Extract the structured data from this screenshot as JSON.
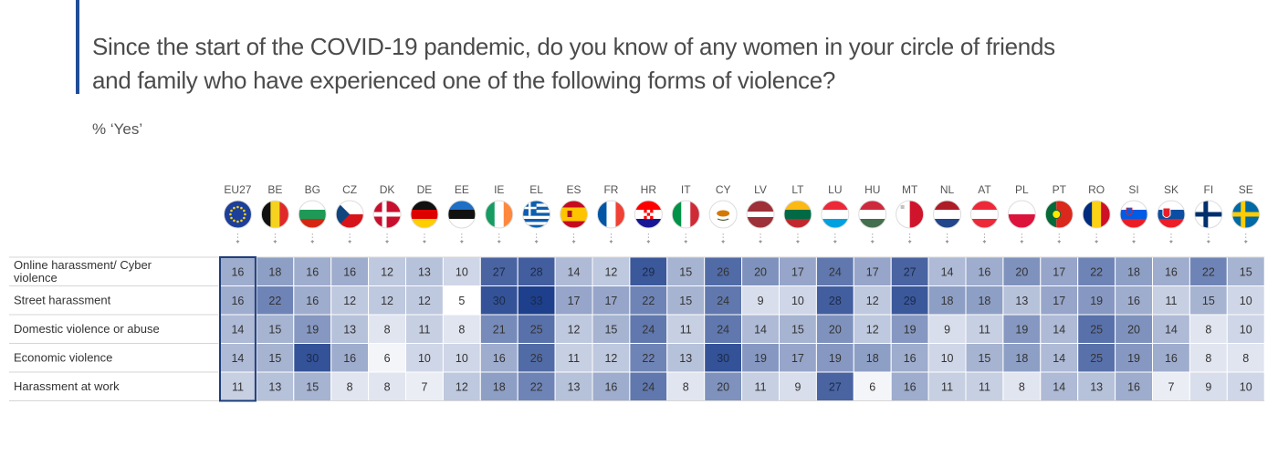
{
  "title": "Since the start of the COVID-19 pandemic, do you know of any women in your circle of friends and family who have experienced one of the following forms of violence?",
  "subtitle": "% ‘Yes’",
  "colors": {
    "accent": "#1f4e96",
    "scale_low": "#ffffff",
    "scale_high": "#1e3f8c",
    "highlight_border": "#1f3f7a"
  },
  "chart_data": {
    "type": "heatmap",
    "title": "",
    "columns": [
      "EU27",
      "BE",
      "BG",
      "CZ",
      "DK",
      "DE",
      "EE",
      "IE",
      "EL",
      "ES",
      "FR",
      "HR",
      "IT",
      "CY",
      "LV",
      "LT",
      "LU",
      "HU",
      "MT",
      "NL",
      "AT",
      "PL",
      "PT",
      "RO",
      "SI",
      "SK",
      "FI",
      "SE"
    ],
    "flag_icons": [
      "eu-flag-icon",
      "belgium-flag-icon",
      "bulgaria-flag-icon",
      "czechia-flag-icon",
      "denmark-flag-icon",
      "germany-flag-icon",
      "estonia-flag-icon",
      "ireland-flag-icon",
      "greece-flag-icon",
      "spain-flag-icon",
      "france-flag-icon",
      "croatia-flag-icon",
      "italy-flag-icon",
      "cyprus-flag-icon",
      "latvia-flag-icon",
      "lithuania-flag-icon",
      "luxembourg-flag-icon",
      "hungary-flag-icon",
      "malta-flag-icon",
      "netherlands-flag-icon",
      "austria-flag-icon",
      "poland-flag-icon",
      "portugal-flag-icon",
      "romania-flag-icon",
      "slovenia-flag-icon",
      "slovakia-flag-icon",
      "finland-flag-icon",
      "sweden-flag-icon"
    ],
    "rows": [
      {
        "label": "Online harassment/ Cyber violence",
        "values": [
          16,
          18,
          16,
          16,
          12,
          13,
          10,
          27,
          28,
          14,
          12,
          29,
          15,
          26,
          20,
          17,
          24,
          17,
          27,
          14,
          16,
          20,
          17,
          22,
          18,
          16,
          22,
          15
        ]
      },
      {
        "label": "Street harassment",
        "values": [
          16,
          22,
          16,
          12,
          12,
          12,
          5,
          30,
          33,
          17,
          17,
          22,
          15,
          24,
          9,
          10,
          28,
          12,
          29,
          18,
          18,
          13,
          17,
          19,
          16,
          11,
          15,
          10
        ]
      },
      {
        "label": "Domestic violence or abuse",
        "values": [
          14,
          15,
          19,
          13,
          8,
          11,
          8,
          21,
          25,
          12,
          15,
          24,
          11,
          24,
          14,
          15,
          20,
          12,
          19,
          9,
          11,
          19,
          14,
          25,
          20,
          14,
          8,
          10
        ]
      },
      {
        "label": "Economic violence",
        "values": [
          14,
          15,
          30,
          16,
          6,
          10,
          10,
          16,
          26,
          11,
          12,
          22,
          13,
          30,
          19,
          17,
          19,
          18,
          16,
          10,
          15,
          18,
          14,
          25,
          19,
          16,
          8,
          8
        ]
      },
      {
        "label": "Harassment at work",
        "values": [
          11,
          13,
          15,
          8,
          8,
          7,
          12,
          18,
          22,
          13,
          16,
          24,
          8,
          20,
          11,
          9,
          27,
          6,
          16,
          11,
          11,
          8,
          14,
          13,
          16,
          7,
          9,
          10
        ]
      }
    ],
    "highlight_column": "EU27"
  }
}
